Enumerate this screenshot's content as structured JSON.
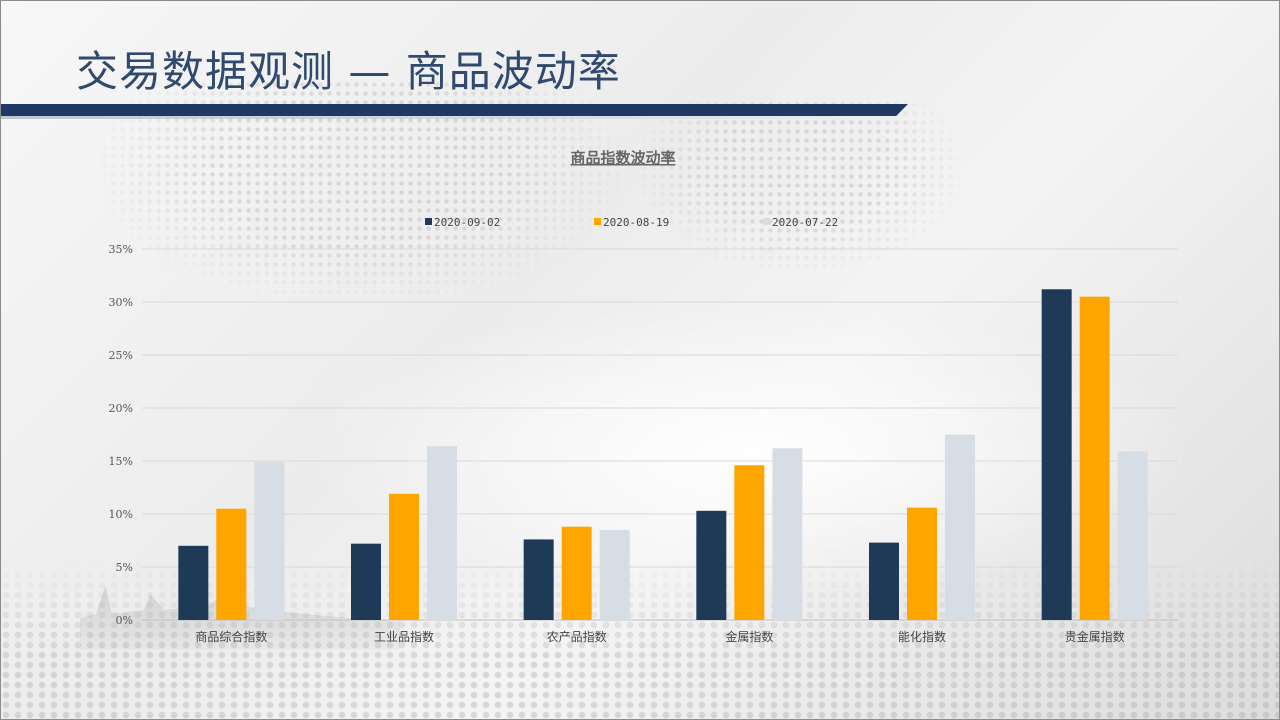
{
  "header": {
    "title": "交易数据观测  —  商品波动率"
  },
  "colors": {
    "series_1": "#1f3a57",
    "series_2": "#ffa500",
    "series_3": "#d6dde5",
    "header_bar": "#1f3864",
    "title": "#2f4a6e"
  },
  "chart_data": {
    "type": "bar",
    "title": "商品指数波动率",
    "xlabel": "",
    "ylabel": "",
    "ylim": [
      0,
      35
    ],
    "yticks": [
      "0%",
      "5%",
      "10%",
      "15%",
      "20%",
      "25%",
      "30%",
      "35%"
    ],
    "ytick_values": [
      0,
      5,
      10,
      15,
      20,
      25,
      30,
      35
    ],
    "grid": true,
    "legend_position": "top",
    "categories": [
      "商品综合指数",
      "工业品指数",
      "农产品指数",
      "金属指数",
      "能化指数",
      "贵金属指数"
    ],
    "series": [
      {
        "name": "2020-09-02",
        "values": [
          7.0,
          7.2,
          7.6,
          10.3,
          7.3,
          31.2
        ]
      },
      {
        "name": "2020-08-19",
        "values": [
          10.5,
          11.9,
          8.8,
          14.6,
          10.6,
          30.5
        ]
      },
      {
        "name": "2020-07-22",
        "values": [
          14.9,
          16.4,
          8.5,
          16.2,
          17.5,
          15.9
        ]
      }
    ]
  }
}
